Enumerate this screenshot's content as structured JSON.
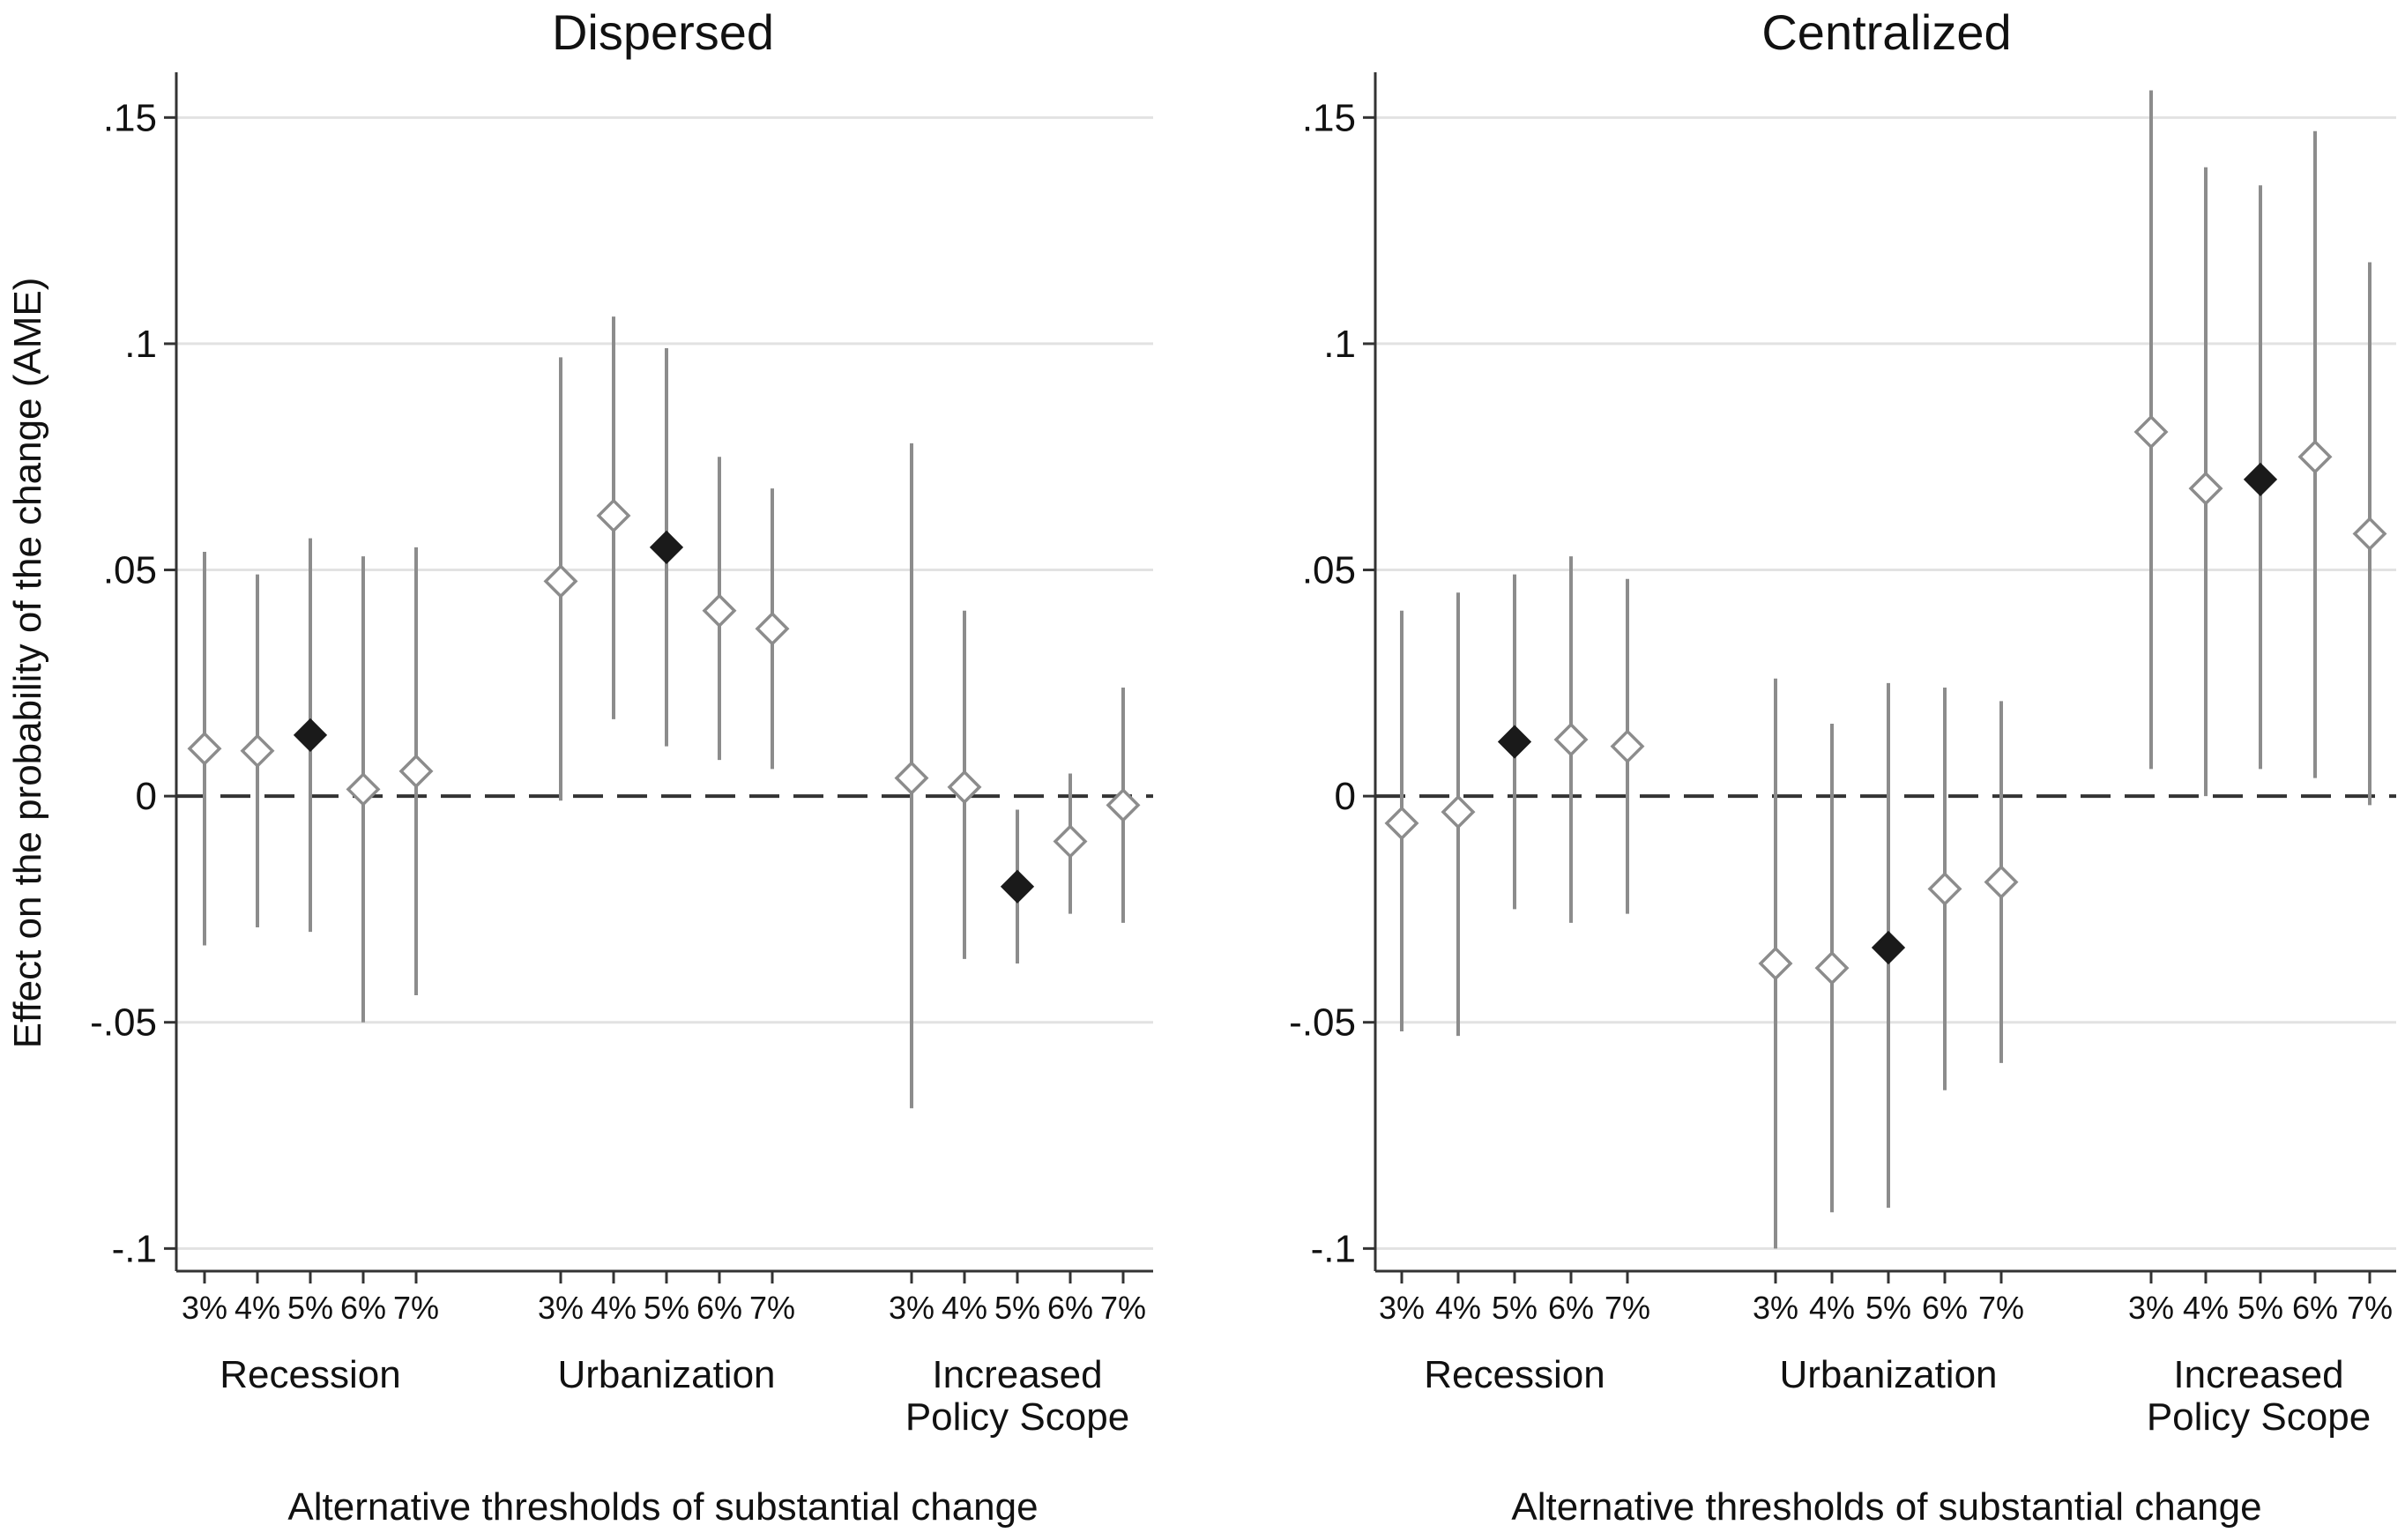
{
  "chart_data": [
    {
      "type": "scatter",
      "title": "Dispersed",
      "xlabel": "Alternative thresholds of substantial change",
      "ylabel": "Effect on the probability of the change (AME)",
      "ylim": [
        -0.105,
        0.16
      ],
      "yticks": [
        0.15,
        0.1,
        0.05,
        0,
        -0.05,
        -0.1
      ],
      "ytick_labels": [
        ".15",
        ".1",
        ".05",
        "0",
        "-.05",
        "-.1"
      ],
      "reference_line": 0,
      "grid": true,
      "categories": [
        "3%",
        "4%",
        "5%",
        "6%",
        "7%"
      ],
      "highlight_category": "5%",
      "groups": [
        {
          "label": [
            "Recession"
          ],
          "estimates": [
            0.0105,
            0.01,
            0.0135,
            0.0015,
            0.0055
          ],
          "ci_low": [
            -0.033,
            -0.029,
            -0.03,
            -0.05,
            -0.044
          ],
          "ci_high": [
            0.054,
            0.049,
            0.057,
            0.053,
            0.055
          ]
        },
        {
          "label": [
            "Urbanization"
          ],
          "estimates": [
            0.0475,
            0.062,
            0.055,
            0.041,
            0.037
          ],
          "ci_low": [
            -0.001,
            0.017,
            0.011,
            0.008,
            0.006
          ],
          "ci_high": [
            0.097,
            0.106,
            0.099,
            0.075,
            0.068
          ]
        },
        {
          "label": [
            "Increased",
            "Policy Scope"
          ],
          "estimates": [
            0.004,
            0.002,
            -0.02,
            -0.01,
            -0.002
          ],
          "ci_low": [
            -0.069,
            -0.036,
            -0.037,
            -0.026,
            -0.028
          ],
          "ci_high": [
            0.078,
            0.041,
            -0.003,
            0.005,
            0.024
          ]
        }
      ]
    },
    {
      "type": "scatter",
      "title": "Centralized",
      "xlabel": "Alternative thresholds of substantial change",
      "ylabel": "",
      "ylim": [
        -0.105,
        0.16
      ],
      "yticks": [
        0.15,
        0.1,
        0.05,
        0,
        -0.05,
        -0.1
      ],
      "ytick_labels": [
        ".15",
        ".1",
        ".05",
        "0",
        "-.05",
        "-.1"
      ],
      "reference_line": 0,
      "grid": true,
      "categories": [
        "3%",
        "4%",
        "5%",
        "6%",
        "7%"
      ],
      "highlight_category": "5%",
      "groups": [
        {
          "label": [
            "Recession"
          ],
          "estimates": [
            -0.006,
            -0.0035,
            0.012,
            0.0125,
            0.011
          ],
          "ci_low": [
            -0.052,
            -0.053,
            -0.025,
            -0.028,
            -0.026
          ],
          "ci_high": [
            0.041,
            0.045,
            0.049,
            0.053,
            0.048
          ]
        },
        {
          "label": [
            "Urbanization"
          ],
          "estimates": [
            -0.037,
            -0.038,
            -0.0335,
            -0.0205,
            -0.019
          ],
          "ci_low": [
            -0.1,
            -0.092,
            -0.091,
            -0.065,
            -0.059
          ],
          "ci_high": [
            0.026,
            0.016,
            0.025,
            0.024,
            0.021
          ]
        },
        {
          "label": [
            "Increased",
            "Policy Scope"
          ],
          "estimates": [
            0.0805,
            0.068,
            0.07,
            0.075,
            0.058
          ],
          "ci_low": [
            0.006,
            0.0,
            0.006,
            0.004,
            -0.002
          ],
          "ci_high": [
            0.156,
            0.139,
            0.135,
            0.147,
            0.118
          ]
        }
      ]
    }
  ],
  "colors": {
    "open_marker": "#8c8c8c",
    "filled_marker": "#1a1a1a",
    "ci_line": "#8c8c8c",
    "grid": "#e2e2e2",
    "axis": "#333333",
    "reference": "#333333"
  }
}
